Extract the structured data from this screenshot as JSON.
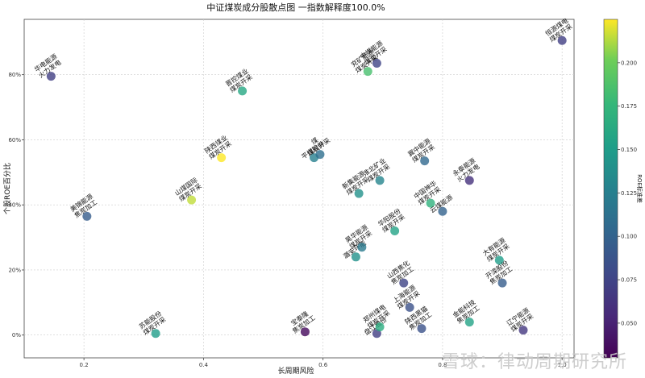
{
  "chart_data": {
    "type": "scatter",
    "title": "中证煤炭成分股散点图   一指数解释度100.0%",
    "xlabel": "长周期风险",
    "ylabel": "个股ROE百分比",
    "colorbar_label": "ROE标准差",
    "xlim": [
      0.1,
      1.02
    ],
    "ylim": [
      -7,
      97
    ],
    "xticks": [
      0.2,
      0.4,
      0.6,
      0.8,
      1.0
    ],
    "xtick_labels": [
      "0.2",
      "0.4",
      "0.6",
      "0.8",
      "1.0"
    ],
    "yticks": [
      0,
      20,
      40,
      60,
      80
    ],
    "ytick_labels": [
      "0%",
      "20%",
      "40%",
      "60%",
      "80%"
    ],
    "clim": [
      0.03,
      0.225
    ],
    "cticks": [
      0.05,
      0.075,
      0.1,
      0.125,
      0.15,
      0.175,
      0.2
    ],
    "ctick_labels": [
      "0.050",
      "0.075",
      "0.100",
      "0.125",
      "0.150",
      "0.175",
      "0.200"
    ],
    "grid": true,
    "points": [
      {
        "x": 0.145,
        "y": 79.5,
        "c": 0.07,
        "label": "华电能源\n火力发电"
      },
      {
        "x": 0.205,
        "y": 36.5,
        "c": 0.095,
        "label": "美锦能源\n焦炭加工"
      },
      {
        "x": 0.32,
        "y": 0.5,
        "c": 0.15,
        "label": "苏能股份\n煤炭开采"
      },
      {
        "x": 0.38,
        "y": 41.5,
        "c": 0.215,
        "label": "山煤国际\n煤炭开采"
      },
      {
        "x": 0.43,
        "y": 54.5,
        "c": 0.225,
        "label": "陕西煤业\n煤炭开采"
      },
      {
        "x": 0.465,
        "y": 75,
        "c": 0.16,
        "label": "晋控煤业\n煤炭开采"
      },
      {
        "x": 0.57,
        "y": 1,
        "c": 0.035,
        "label": "宝泰隆\n焦炭加工"
      },
      {
        "x": 0.585,
        "y": 54.5,
        "c": 0.125,
        "label": "平煤股份"
      },
      {
        "x": 0.595,
        "y": 55.5,
        "c": 0.11,
        "label": "煤\n煤炭开采"
      },
      {
        "x": 0.66,
        "y": 43.5,
        "c": 0.14,
        "label": "新集能源\n煤炭开采"
      },
      {
        "x": 0.655,
        "y": 24,
        "c": 0.14,
        "label": "潞安环能"
      },
      {
        "x": 0.665,
        "y": 27,
        "c": 0.12,
        "label": "昊华能源\n煤炭开采"
      },
      {
        "x": 0.675,
        "y": 81,
        "c": 0.185,
        "label": "兖矿能源\n煤炭开采"
      },
      {
        "x": 0.69,
        "y": 83.5,
        "c": 0.075,
        "label": "中煤能源\n煤炭开采"
      },
      {
        "x": 0.695,
        "y": 47.5,
        "c": 0.13,
        "label": "淮北矿业\n煤炭开采"
      },
      {
        "x": 0.69,
        "y": 0.5,
        "c": 0.07,
        "label": "盘江股份"
      },
      {
        "x": 0.695,
        "y": 2.5,
        "c": 0.165,
        "label": "郑州煤电\n煤炭开采"
      },
      {
        "x": 0.72,
        "y": 32,
        "c": 0.155,
        "label": "华阳股份\n煤炭开采"
      },
      {
        "x": 0.735,
        "y": 16,
        "c": 0.075,
        "label": "山西焦化\n焦炭加工"
      },
      {
        "x": 0.745,
        "y": 8.5,
        "c": 0.085,
        "label": "上海能源\n煤炭开采"
      },
      {
        "x": 0.765,
        "y": 2,
        "c": 0.085,
        "label": "陕西黑猫\n焦炭加工"
      },
      {
        "x": 0.77,
        "y": 53.5,
        "c": 0.105,
        "label": "冀中能源\n煤炭开采"
      },
      {
        "x": 0.78,
        "y": 40.5,
        "c": 0.17,
        "label": "中国神华\n煤炭开采"
      },
      {
        "x": 0.8,
        "y": 38,
        "c": 0.1,
        "label": "云煤能源"
      },
      {
        "x": 0.845,
        "y": 47.5,
        "c": 0.06,
        "label": "永泰能源\n火力发电"
      },
      {
        "x": 0.845,
        "y": 4,
        "c": 0.155,
        "label": "金能科技\n焦炭加工"
      },
      {
        "x": 0.895,
        "y": 23,
        "c": 0.15,
        "label": "大有能源\n煤炭开采"
      },
      {
        "x": 0.9,
        "y": 16,
        "c": 0.095,
        "label": "开滦股份\n焦炭加工"
      },
      {
        "x": 0.935,
        "y": 1.5,
        "c": 0.065,
        "label": "辽宁能源\n煤炭开采"
      },
      {
        "x": 1.0,
        "y": 90.5,
        "c": 0.07,
        "label": "恒源煤电\n煤炭开采"
      }
    ]
  },
  "watermark": "雪球：律动周期研究所"
}
